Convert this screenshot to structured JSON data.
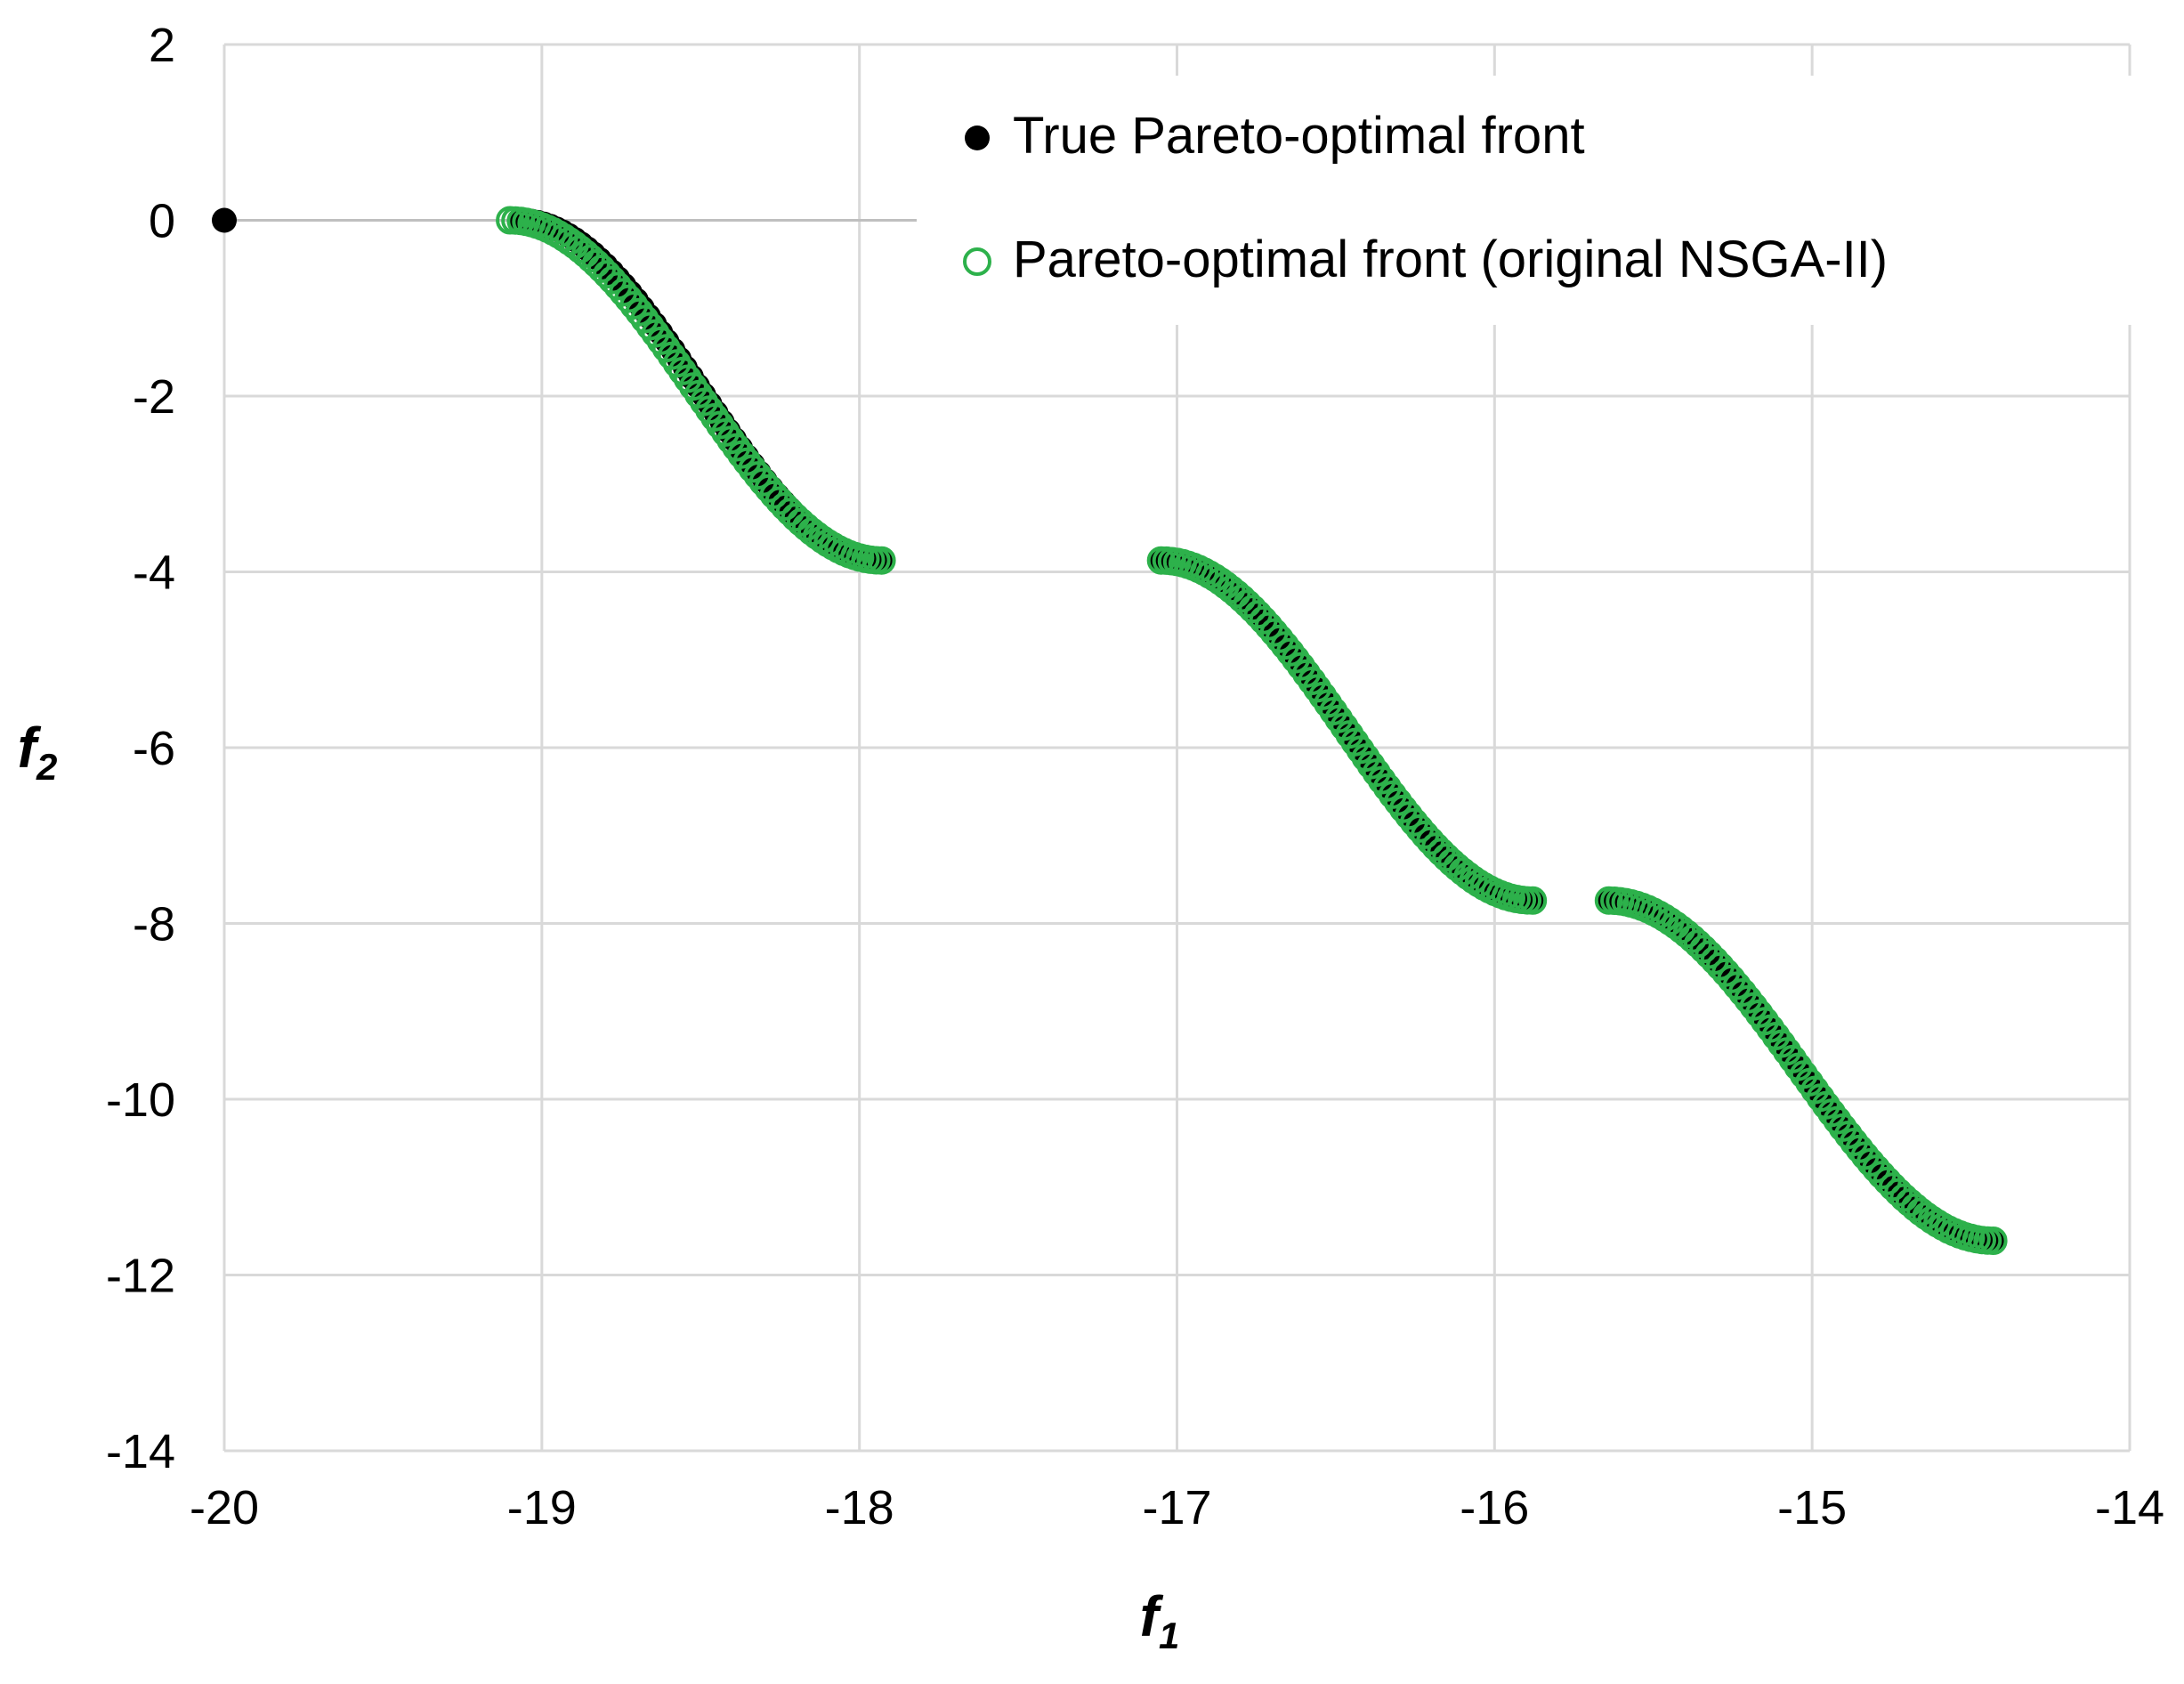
{
  "chart_data": {
    "type": "scatter",
    "title": "",
    "xlabel": "f",
    "xlabel_sub": "1",
    "ylabel": "f",
    "ylabel_sub": "2",
    "xlim": [
      -20,
      -14
    ],
    "ylim": [
      -14,
      2
    ],
    "xticks": [
      "-20",
      "-19",
      "-18",
      "-17",
      "-16",
      "-15",
      "-14"
    ],
    "yticks": [
      "2",
      "0",
      "-2",
      "-4",
      "-6",
      "-8",
      "-10",
      "-12",
      "-14"
    ],
    "grid": true,
    "legend_position": "top-right",
    "series": [
      {
        "name": "True Pareto-optimal front",
        "marker": "filled-circle",
        "color": "#000000",
        "segments": [
          {
            "x": [
              -20.0
            ],
            "y": [
              0.0
            ]
          },
          {
            "x_range": [
              -19.07,
              -17.93
            ],
            "y_range": [
              0.0,
              -3.87
            ],
            "points": 60
          },
          {
            "x_range": [
              -17.05,
              -15.88
            ],
            "y_range": [
              -3.87,
              -7.74
            ],
            "points": 60
          },
          {
            "x_range": [
              -15.64,
              -14.43
            ],
            "y_range": [
              -7.74,
              -11.61
            ],
            "points": 60
          }
        ]
      },
      {
        "name": "Pareto-optimal front (original NSGA-II)",
        "marker": "open-circle",
        "color": "#2db14b",
        "segments": [
          {
            "x_range": [
              -19.1,
              -17.93
            ],
            "y_range": [
              0.0,
              -3.87
            ],
            "points": 70
          },
          {
            "x_range": [
              -17.05,
              -15.88
            ],
            "y_range": [
              -3.87,
              -7.74
            ],
            "points": 70
          },
          {
            "x_range": [
              -15.64,
              -14.43
            ],
            "y_range": [
              -7.74,
              -11.61
            ],
            "points": 70
          }
        ]
      }
    ]
  }
}
